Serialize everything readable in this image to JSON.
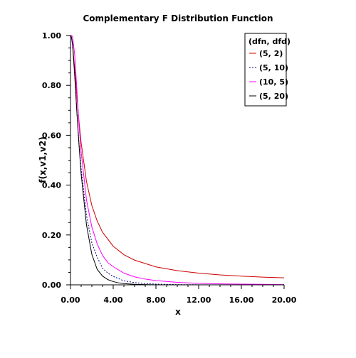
{
  "chart_data": {
    "type": "line",
    "title": "Complementary F Distribution Function",
    "xlabel": "x",
    "ylabel": "f(x,v1,v2)",
    "xlim": [
      0,
      20
    ],
    "ylim": [
      0,
      1
    ],
    "x_ticks": [
      "0.00",
      "4.00",
      "8.00",
      "12.00",
      "16.00",
      "20.00"
    ],
    "y_ticks": [
      "0.00",
      "0.20",
      "0.40",
      "0.60",
      "0.80",
      "1.00"
    ],
    "grid": false,
    "legend": {
      "title": "(dfn, dfd)",
      "position": "top-right"
    },
    "series": [
      {
        "name": "(5, 2)",
        "color": "#cc0000",
        "style": "solid",
        "x": [
          0.0,
          0.05,
          0.1,
          0.2,
          0.4,
          0.6,
          0.8,
          1.0,
          1.5,
          2.0,
          2.5,
          3.0,
          4.0,
          5.0,
          6.0,
          8.0,
          10.0,
          12.0,
          14.0,
          16.0,
          18.0,
          20.0
        ],
        "y": [
          1.0,
          0.999,
          0.992,
          0.962,
          0.863,
          0.754,
          0.655,
          0.569,
          0.414,
          0.318,
          0.256,
          0.211,
          0.155,
          0.121,
          0.099,
          0.072,
          0.057,
          0.047,
          0.04,
          0.035,
          0.031,
          0.028
        ]
      },
      {
        "name": "(5, 10)",
        "color": "#000080",
        "style": "dotted",
        "x": [
          0.0,
          0.1,
          0.2,
          0.4,
          0.6,
          0.8,
          1.0,
          1.5,
          2.0,
          2.5,
          3.0,
          3.5,
          4.0,
          5.0,
          6.0,
          7.0,
          8.0,
          10.0,
          12.0,
          20.0
        ],
        "y": [
          1.0,
          0.99,
          0.965,
          0.832,
          0.694,
          0.566,
          0.465,
          0.278,
          0.168,
          0.111,
          0.067,
          0.047,
          0.034,
          0.016,
          0.009,
          0.005,
          0.003,
          0.001,
          0.0005,
          0.0
        ]
      },
      {
        "name": "(10, 5)",
        "color": "#ff00ff",
        "style": "solid",
        "x": [
          0.0,
          0.1,
          0.2,
          0.4,
          0.6,
          0.8,
          1.0,
          1.5,
          2.0,
          2.5,
          3.0,
          3.5,
          4.0,
          5.0,
          6.0,
          7.0,
          8.0,
          10.0,
          12.0,
          14.0,
          16.0,
          18.0,
          20.0
        ],
        "y": [
          1.0,
          1.0,
          0.995,
          0.92,
          0.782,
          0.64,
          0.532,
          0.34,
          0.232,
          0.164,
          0.118,
          0.089,
          0.073,
          0.047,
          0.032,
          0.023,
          0.017,
          0.01,
          0.006,
          0.004,
          0.003,
          0.002,
          0.001
        ]
      },
      {
        "name": "(5, 20)",
        "color": "#000000",
        "style": "solid",
        "x": [
          0.0,
          0.1,
          0.2,
          0.4,
          0.6,
          0.8,
          1.0,
          1.5,
          2.0,
          2.5,
          3.0,
          3.5,
          4.0,
          4.5,
          5.0,
          6.0,
          7.0,
          8.0,
          10.0,
          20.0
        ],
        "y": [
          1.0,
          0.992,
          0.958,
          0.838,
          0.69,
          0.56,
          0.443,
          0.24,
          0.122,
          0.062,
          0.035,
          0.021,
          0.013,
          0.008,
          0.005,
          0.002,
          0.001,
          0.0,
          0.0,
          0.0
        ]
      }
    ]
  }
}
